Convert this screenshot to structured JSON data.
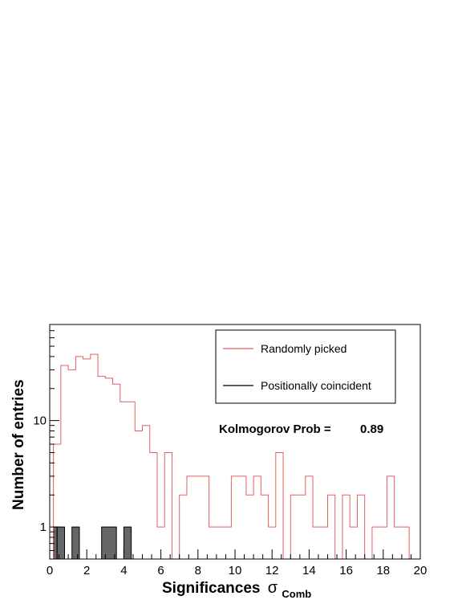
{
  "chart_data": {
    "type": "histogram",
    "title": "",
    "xlabel": "Significances",
    "xlabel_symbol": "σ",
    "xlabel_subscript": "Comb",
    "ylabel": "Number of entries",
    "xlim": [
      0,
      20
    ],
    "ylim": [
      0.5,
      80
    ],
    "y_scale": "log",
    "bin_width": 0.4,
    "grid": false,
    "x_ticks": [
      "0",
      "2",
      "4",
      "6",
      "8",
      "10",
      "12",
      "14",
      "16",
      "18",
      "20"
    ],
    "y_ticks": [
      "1",
      "10"
    ],
    "legend": {
      "placement": "top-right",
      "entries": [
        {
          "label": "Randomly picked",
          "color": "#e06060"
        },
        {
          "label": "Positionally coincident",
          "color": "#000000"
        }
      ]
    },
    "annotation": {
      "label": "Kolmogorov Prob =",
      "value": "0.89"
    },
    "series": [
      {
        "name": "Randomly picked",
        "color": "#e06060",
        "style": "step",
        "x_start": 0.2,
        "values": [
          6,
          33,
          30,
          40,
          38,
          42,
          26,
          25,
          22,
          15,
          15,
          8,
          9,
          5,
          1,
          5,
          0,
          2,
          3,
          3,
          3,
          1,
          1,
          1,
          3,
          3,
          2,
          3,
          2,
          1,
          5,
          0,
          2,
          2,
          3,
          1,
          1,
          2,
          0,
          2,
          1,
          2,
          0,
          1,
          1,
          3,
          1,
          1,
          0
        ]
      },
      {
        "name": "Positionally coincident",
        "color": "#000000",
        "fill": "#666666",
        "style": "filled",
        "bins": [
          {
            "x0": 0.2,
            "x1": 0.4,
            "value": 1
          },
          {
            "x0": 0.4,
            "x1": 0.8,
            "value": 1
          },
          {
            "x0": 1.2,
            "x1": 1.6,
            "value": 1
          },
          {
            "x0": 2.8,
            "x1": 3.6,
            "value": 1
          },
          {
            "x0": 4.0,
            "x1": 4.4,
            "value": 1
          }
        ]
      }
    ]
  }
}
